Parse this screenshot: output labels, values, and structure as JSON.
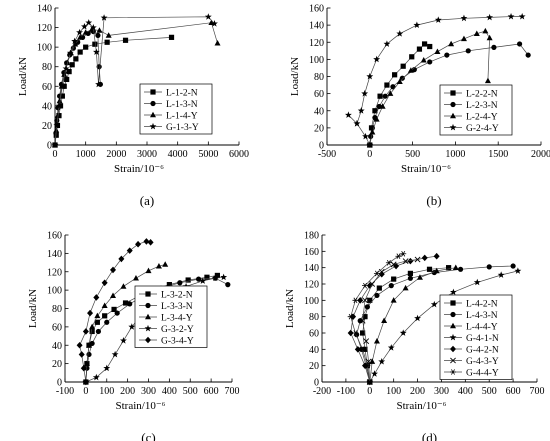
{
  "chart_data": [
    {
      "type": "line",
      "panel_label": "(a)",
      "xlabel": "Strain/10⁻⁶",
      "ylabel": "Load/kN",
      "xlim": [
        0,
        6000
      ],
      "ylim": [
        0,
        140
      ],
      "xticks": [
        0,
        1000,
        2000,
        3000,
        4000,
        5000,
        6000
      ],
      "yticks": [
        0,
        20,
        40,
        60,
        80,
        100,
        120,
        140
      ],
      "grid": false,
      "legend": "center-right",
      "series": [
        {
          "name": "L-1-2-N",
          "marker": "square",
          "x": [
            0,
            40,
            80,
            130,
            180,
            240,
            300,
            380,
            460,
            560,
            680,
            820,
            1000,
            1300,
            1700,
            2300,
            3800
          ],
          "y": [
            0,
            10,
            20,
            30,
            40,
            50,
            60,
            67,
            75,
            82,
            88,
            95,
            100,
            103,
            105,
            107,
            110
          ]
        },
        {
          "name": "L-1-3-N",
          "marker": "circle",
          "x": [
            0,
            30,
            60,
            100,
            150,
            210,
            290,
            380,
            480,
            600,
            740,
            900,
            1080,
            1250,
            1400,
            1440,
            1480
          ],
          "y": [
            0,
            12,
            25,
            38,
            50,
            62,
            74,
            84,
            92,
            99,
            105,
            110,
            114,
            116,
            112,
            80,
            62
          ]
        },
        {
          "name": "L-1-4-Y",
          "marker": "triangle",
          "x": [
            0,
            40,
            90,
            150,
            220,
            300,
            400,
            520,
            660,
            820,
            1000,
            1200,
            1450,
            1750,
            5100,
            5300
          ],
          "y": [
            0,
            15,
            30,
            45,
            60,
            72,
            84,
            94,
            103,
            110,
            115,
            118,
            117,
            112,
            125,
            104
          ]
        },
        {
          "name": "G-1-3-Y",
          "marker": "star",
          "x": [
            0,
            60,
            140,
            240,
            360,
            500,
            640,
            800,
            960,
            1100,
            1250,
            1350,
            1420,
            1600,
            5000,
            5200
          ],
          "y": [
            0,
            20,
            40,
            60,
            78,
            94,
            106,
            115,
            121,
            125,
            120,
            95,
            62,
            130,
            131,
            124
          ]
        }
      ]
    },
    {
      "type": "line",
      "panel_label": "(b)",
      "xlabel": "Strain/10⁻⁶",
      "ylabel": "Load/kN",
      "xlim": [
        -500,
        2000
      ],
      "ylim": [
        0,
        160
      ],
      "xticks": [
        -500,
        0,
        500,
        1000,
        1500,
        2000
      ],
      "yticks": [
        0,
        20,
        40,
        60,
        80,
        100,
        120,
        140,
        160
      ],
      "grid": false,
      "legend": "bottom-right",
      "series": [
        {
          "name": "L-2-2-N",
          "marker": "square",
          "x": [
            0,
            20,
            60,
            120,
            200,
            290,
            390,
            490,
            580,
            640,
            700
          ],
          "y": [
            0,
            20,
            40,
            57,
            70,
            82,
            92,
            103,
            112,
            118,
            115
          ]
        },
        {
          "name": "L-2-3-N",
          "marker": "circle",
          "x": [
            0,
            10,
            30,
            60,
            110,
            180,
            270,
            380,
            520,
            700,
            900,
            1150,
            1450,
            1750,
            1850
          ],
          "y": [
            0,
            10,
            20,
            32,
            45,
            57,
            68,
            78,
            88,
            97,
            105,
            110,
            114,
            118,
            105
          ]
        },
        {
          "name": "L-2-4-Y",
          "marker": "triangle",
          "x": [
            0,
            30,
            80,
            150,
            240,
            350,
            480,
            630,
            790,
            950,
            1100,
            1250,
            1350,
            1400,
            1380
          ],
          "y": [
            0,
            15,
            30,
            45,
            60,
            74,
            87,
            99,
            109,
            118,
            124,
            130,
            133,
            125,
            75
          ]
        },
        {
          "name": "G-2-4-Y",
          "marker": "star",
          "x": [
            0,
            -50,
            -150,
            -250,
            -150,
            -100,
            -60,
            0,
            80,
            200,
            350,
            550,
            800,
            1100,
            1400,
            1650,
            1780
          ],
          "y": [
            0,
            10,
            25,
            35,
            25,
            40,
            60,
            80,
            100,
            118,
            130,
            140,
            146,
            148,
            149,
            150,
            150
          ]
        }
      ]
    },
    {
      "type": "line",
      "panel_label": "(c)",
      "xlabel": "Strain/10⁻⁶",
      "ylabel": "Load/kN",
      "xlim": [
        -100,
        700
      ],
      "ylim": [
        0,
        160
      ],
      "xticks": [
        -100,
        0,
        100,
        200,
        300,
        400,
        500,
        600,
        700
      ],
      "yticks": [
        0,
        20,
        40,
        60,
        80,
        100,
        120,
        140,
        160
      ],
      "grid": false,
      "legend": "center-right",
      "series": [
        {
          "name": "L-3-2-N",
          "marker": "square",
          "x": [
            0,
            5,
            15,
            30,
            55,
            90,
            135,
            190,
            250,
            320,
            400,
            490,
            580,
            630
          ],
          "y": [
            0,
            20,
            40,
            55,
            65,
            72,
            79,
            86,
            93,
            100,
            106,
            111,
            114,
            116
          ]
        },
        {
          "name": "L-3-3-N",
          "marker": "circle",
          "x": [
            0,
            5,
            15,
            30,
            60,
            100,
            150,
            210,
            280,
            360,
            450,
            540,
            620,
            680
          ],
          "y": [
            0,
            15,
            30,
            42,
            55,
            65,
            75,
            85,
            94,
            102,
            108,
            112,
            113,
            106
          ]
        },
        {
          "name": "L-3-4-Y",
          "marker": "triangle",
          "x": [
            0,
            5,
            15,
            30,
            55,
            90,
            130,
            180,
            240,
            300,
            350,
            380
          ],
          "y": [
            0,
            20,
            40,
            60,
            72,
            83,
            94,
            104,
            113,
            121,
            126,
            128
          ]
        },
        {
          "name": "G-3-2-Y",
          "marker": "star",
          "x": [
            0,
            50,
            100,
            140,
            180,
            220,
            270,
            330,
            400,
            480,
            560,
            620,
            660
          ],
          "y": [
            0,
            5,
            15,
            30,
            45,
            60,
            74,
            86,
            96,
            104,
            110,
            113,
            114
          ]
        },
        {
          "name": "G-3-4-Y",
          "marker": "diamond",
          "x": [
            0,
            -10,
            -20,
            -30,
            0,
            20,
            50,
            90,
            130,
            170,
            210,
            250,
            290,
            310
          ],
          "y": [
            0,
            15,
            30,
            40,
            55,
            75,
            92,
            108,
            122,
            134,
            143,
            150,
            153,
            152
          ]
        }
      ]
    },
    {
      "type": "line",
      "panel_label": "(d)",
      "xlabel": "Strain/10⁻⁶",
      "ylabel": "Load/kN",
      "xlim": [
        -200,
        700
      ],
      "ylim": [
        0,
        180
      ],
      "xticks": [
        -200,
        -100,
        0,
        100,
        200,
        300,
        400,
        500,
        600,
        700
      ],
      "yticks": [
        0,
        20,
        40,
        60,
        80,
        100,
        120,
        140,
        160,
        180
      ],
      "grid": false,
      "legend": "bottom-right",
      "series": [
        {
          "name": "L-4-2-N",
          "marker": "square",
          "x": [
            0,
            -10,
            -20,
            -30,
            -20,
            0,
            40,
            100,
            170,
            250,
            330
          ],
          "y": [
            0,
            20,
            40,
            60,
            80,
            100,
            115,
            126,
            133,
            138,
            140
          ]
        },
        {
          "name": "L-4-3-N",
          "marker": "circle",
          "x": [
            0,
            -15,
            -35,
            -55,
            -40,
            -10,
            30,
            90,
            170,
            270,
            380,
            500,
            600
          ],
          "y": [
            0,
            20,
            40,
            58,
            75,
            92,
            106,
            118,
            127,
            134,
            138,
            141,
            142
          ]
        },
        {
          "name": "L-4-4-Y",
          "marker": "triangle",
          "x": [
            0,
            10,
            30,
            60,
            100,
            150,
            210,
            280,
            360
          ],
          "y": [
            0,
            25,
            50,
            75,
            100,
            115,
            128,
            136,
            140
          ]
        },
        {
          "name": "G-4-1-N",
          "marker": "star",
          "x": [
            0,
            20,
            50,
            90,
            140,
            200,
            270,
            350,
            450,
            550,
            620
          ],
          "y": [
            0,
            10,
            25,
            42,
            60,
            78,
            95,
            110,
            122,
            131,
            136
          ]
        },
        {
          "name": "G-4-2-N",
          "marker": "diamond",
          "x": [
            0,
            -20,
            -50,
            -80,
            -70,
            -40,
            0,
            50,
            110,
            170,
            230,
            280
          ],
          "y": [
            0,
            20,
            40,
            60,
            80,
            100,
            118,
            132,
            142,
            148,
            152,
            154
          ]
        },
        {
          "name": "G-4-3-Y",
          "marker": "x",
          "x": [
            0,
            -5,
            -15,
            -30,
            -20,
            10,
            50,
            100,
            150,
            200
          ],
          "y": [
            0,
            25,
            50,
            75,
            100,
            120,
            135,
            144,
            148,
            150
          ]
        },
        {
          "name": "G-4-4-Y",
          "marker": "asterisk",
          "x": [
            0,
            -10,
            -30,
            -60,
            -80,
            -60,
            -20,
            30,
            80,
            120,
            140
          ],
          "y": [
            0,
            20,
            40,
            60,
            80,
            100,
            118,
            133,
            146,
            154,
            157
          ]
        }
      ]
    }
  ]
}
